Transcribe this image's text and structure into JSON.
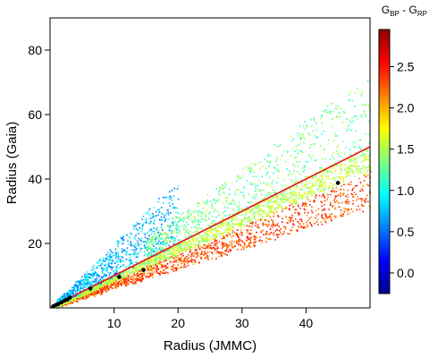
{
  "chart_data": {
    "type": "scatter",
    "title": "",
    "xlabel": "Radius (JMMC)",
    "ylabel": "Radius (Gaia)",
    "xlim": [
      0,
      50
    ],
    "ylim": [
      0,
      90
    ],
    "x_ticks": [
      10,
      20,
      30,
      40
    ],
    "y_ticks": [
      20,
      40,
      60,
      80
    ],
    "grid": false,
    "colorbar": {
      "title_main": "G",
      "title_sub1": "BP",
      "title_sep": " - G",
      "title_sub2": "RP",
      "range": [
        -0.25,
        2.95
      ],
      "ticks": [
        "0.0",
        "0.5",
        "1.0",
        "1.5",
        "2.0",
        "2.5"
      ],
      "tick_values": [
        0.0,
        0.5,
        1.0,
        1.5,
        2.0,
        2.5
      ],
      "colormap": [
        "#00008B",
        "#0000FF",
        "#0080FF",
        "#00FFFF",
        "#80FF80",
        "#FFFF00",
        "#FF8000",
        "#FF0000",
        "#8B0000"
      ]
    },
    "fit_line": {
      "x": [
        0,
        50
      ],
      "y": [
        0,
        50
      ],
      "color": "#E8141E"
    },
    "highlighted_points": {
      "color": "#000000",
      "points": [
        {
          "x": 0.5,
          "y": 0.5
        },
        {
          "x": 0.9,
          "y": 0.9
        },
        {
          "x": 1.3,
          "y": 1.2
        },
        {
          "x": 1.8,
          "y": 1.7
        },
        {
          "x": 2.3,
          "y": 2.3
        },
        {
          "x": 2.7,
          "y": 2.6
        },
        {
          "x": 3.1,
          "y": 3.2
        },
        {
          "x": 6.3,
          "y": 6.0
        },
        {
          "x": 10.8,
          "y": 9.6
        },
        {
          "x": 14.6,
          "y": 11.8
        },
        {
          "x": 45.0,
          "y": 38.8
        }
      ]
    },
    "scatter_bands": [
      {
        "name": "",
        "color_index": [
          2.0,
          2.6
        ],
        "x_range": [
          1,
          50
        ],
        "slope_range": [
          0.62,
          0.85
        ],
        "count": 1400
      },
      {
        "name": "",
        "color_index": [
          1.3,
          1.8
        ],
        "x_range": [
          1,
          50
        ],
        "slope_range": [
          0.85,
          1.02
        ],
        "count": 1800
      },
      {
        "name": "",
        "color_index": [
          0.4,
          1.1
        ],
        "x_range": [
          1,
          20
        ],
        "slope_range": [
          1.0,
          2.0
        ],
        "count": 900
      },
      {
        "name": "",
        "color_index": [
          1.0,
          1.6
        ],
        "x_range": [
          15,
          50
        ],
        "slope_range": [
          1.0,
          1.45
        ],
        "count": 700
      }
    ]
  }
}
